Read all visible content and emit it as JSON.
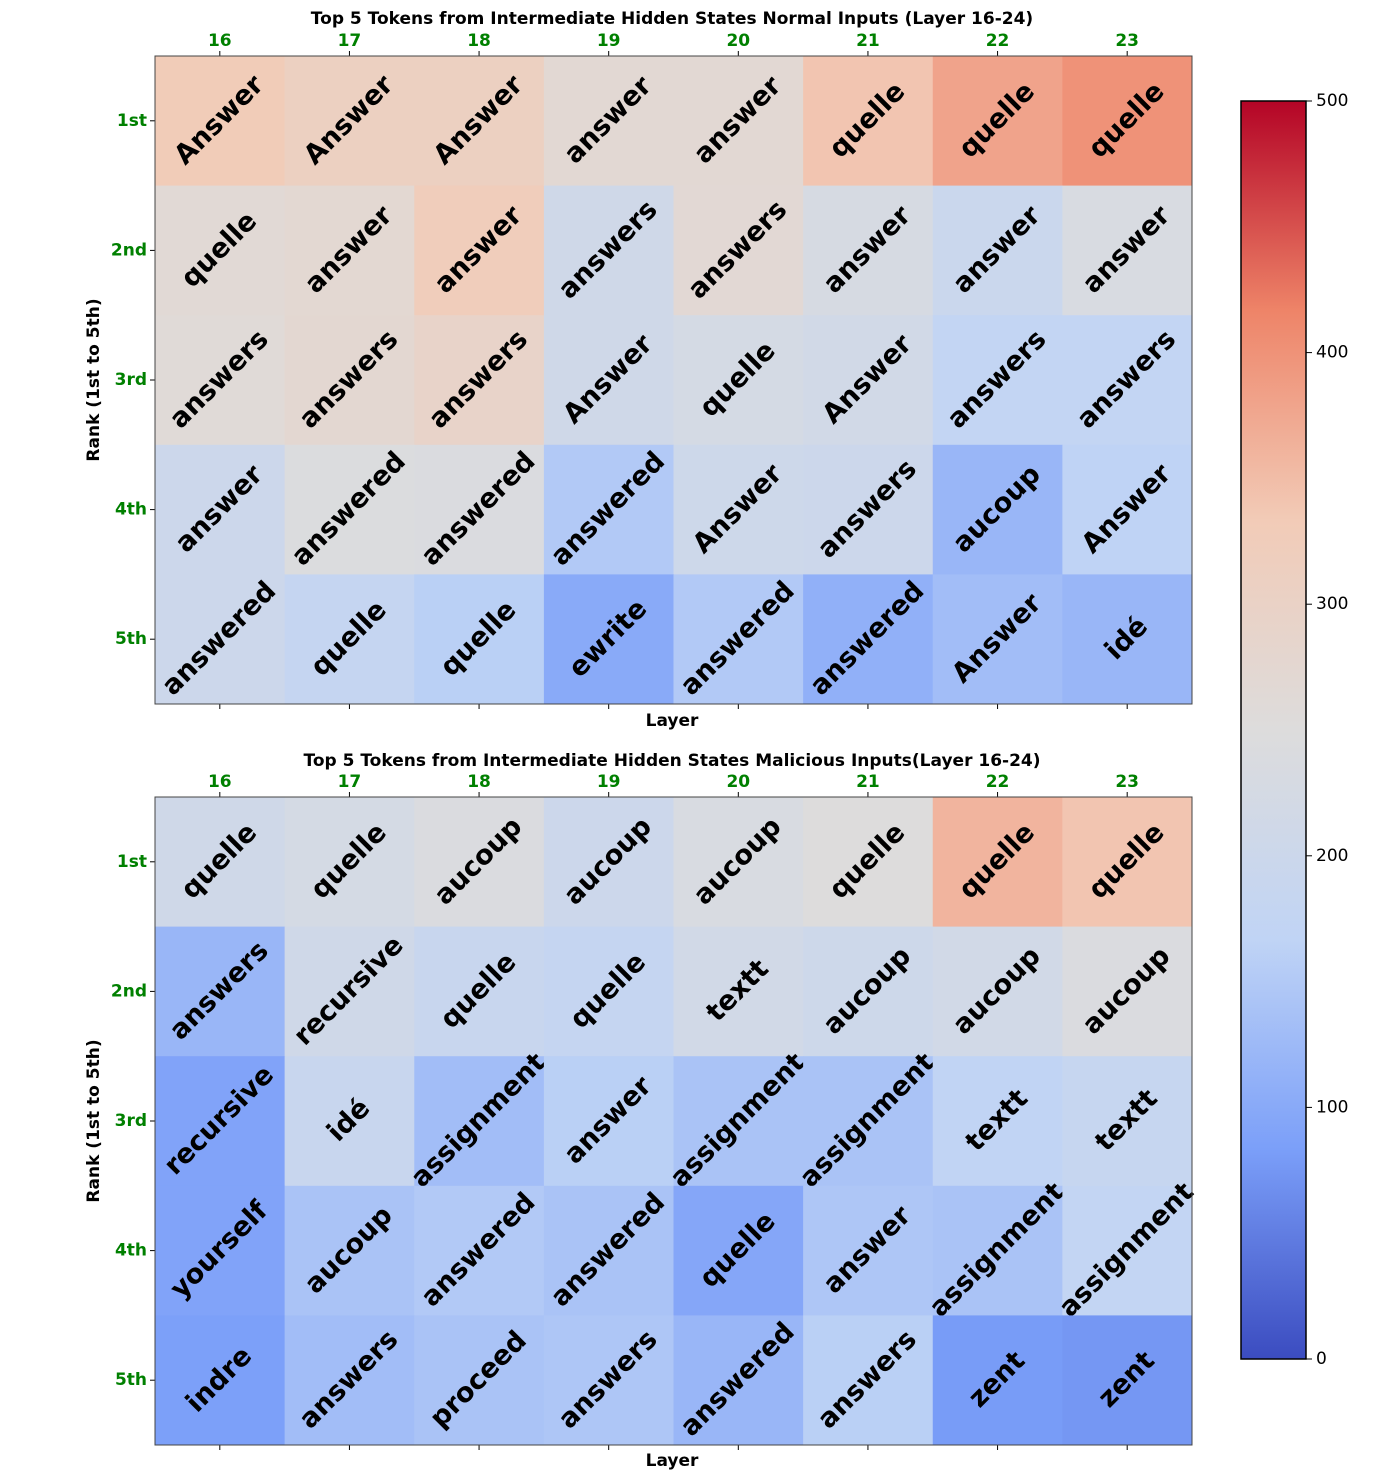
{
  "chart_data": [
    {
      "type": "heatmap",
      "title": "Top 5 Tokens from Intermediate Hidden States Normal Inputs (Layer 16-24)",
      "xlabel": "Layer",
      "ylabel": "Rank (1st to 5th)",
      "columns": [
        "16",
        "17",
        "18",
        "19",
        "20",
        "21",
        "22",
        "23"
      ],
      "rows": [
        "1st",
        "2nd",
        "3rd",
        "4th",
        "5th"
      ],
      "tokens": [
        [
          "Answer",
          "Answer",
          "Answer",
          "answer",
          "answer",
          "quelle",
          "quelle",
          "quelle"
        ],
        [
          "quelle",
          "answer",
          "answer",
          "answers",
          "answers",
          "answer",
          "answer",
          "answer"
        ],
        [
          "answers",
          "answers",
          "answers",
          "Answer",
          "quelle",
          "Answer",
          "answers",
          "answers"
        ],
        [
          "answer",
          "answered",
          "answered",
          "answered",
          "Answer",
          "answers",
          "aucoup",
          "Answer"
        ],
        [
          "answered",
          "quelle",
          "quelle",
          "ewrite",
          "answered",
          "answered",
          "Answer",
          "idé"
        ]
      ],
      "values": [
        [
          330,
          310,
          310,
          270,
          270,
          340,
          380,
          400
        ],
        [
          265,
          272,
          325,
          210,
          268,
          230,
          195,
          235
        ],
        [
          262,
          275,
          292,
          210,
          225,
          215,
          175,
          175
        ],
        [
          200,
          245,
          240,
          150,
          205,
          200,
          120,
          165
        ],
        [
          200,
          180,
          160,
          100,
          150,
          110,
          130,
          120
        ]
      ]
    },
    {
      "type": "heatmap",
      "title": "Top 5 Tokens from Intermediate Hidden States Malicious Inputs(Layer 16-24)",
      "xlabel": "Layer",
      "ylabel": "Rank (1st to 5th)",
      "columns": [
        "16",
        "17",
        "18",
        "19",
        "20",
        "21",
        "22",
        "23"
      ],
      "rows": [
        "1st",
        "2nd",
        "3rd",
        "4th",
        "5th"
      ],
      "tokens": [
        [
          "quelle",
          "quelle",
          "aucoup",
          "aucoup",
          "aucoup",
          "quelle",
          "quelle",
          "quelle"
        ],
        [
          "answers",
          "recursive",
          "quelle",
          "quelle",
          "textt",
          "aucoup",
          "aucoup",
          "aucoup"
        ],
        [
          "recursive",
          "idé",
          "assignment",
          "answer",
          "assignment",
          "assignment",
          "textt",
          "textt"
        ],
        [
          "yourself",
          "aucoup",
          "answered",
          "answered",
          "quelle",
          "answer",
          "assignment",
          "assignment"
        ],
        [
          "indre",
          "answers",
          "proceed",
          "answers",
          "answered",
          "answers",
          "zent",
          "zent"
        ]
      ],
      "values": [
        [
          210,
          225,
          240,
          200,
          235,
          250,
          360,
          340
        ],
        [
          120,
          210,
          190,
          180,
          215,
          205,
          215,
          240
        ],
        [
          90,
          190,
          130,
          160,
          140,
          140,
          170,
          185
        ],
        [
          90,
          140,
          150,
          140,
          95,
          145,
          140,
          175
        ],
        [
          85,
          130,
          140,
          145,
          120,
          160,
          80,
          75
        ]
      ]
    }
  ],
  "colorbar": {
    "min": 0,
    "max": 500,
    "ticks": [
      "0",
      "100",
      "200",
      "300",
      "400",
      "500"
    ],
    "colors": [
      "#3b4cc0",
      "#7b9ff9",
      "#c0d4f5",
      "#dddcdc",
      "#f2cbb7",
      "#ee8468",
      "#b40426"
    ]
  }
}
